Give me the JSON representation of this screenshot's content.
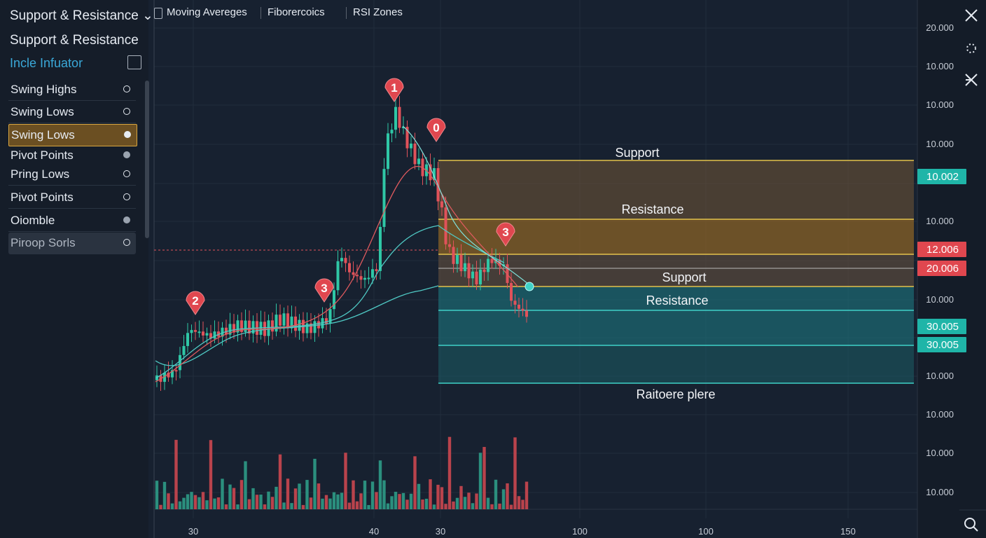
{
  "header": {
    "title": "Support & Resistance",
    "tabs": [
      "Moving Avereges",
      "Fiborercoics",
      "RSI Zones"
    ]
  },
  "panel": {
    "title": "Support & Resistance",
    "subtitle": "Incle Infuator",
    "items": [
      "Swing Highs",
      "Swing Lows",
      "Swing Lows",
      "Pivot Points",
      "Pring Lows",
      "Pivot Points",
      "Oiomble",
      "Piroop Sorls"
    ]
  },
  "y_axis": [
    "20.000",
    "10.000",
    "10.000",
    "10.000",
    "10.000",
    "10.000",
    "10.000",
    "10.000",
    "10.000",
    "10.000"
  ],
  "x_axis": [
    "30",
    "40",
    "30",
    "100",
    "100",
    "150"
  ],
  "price_badges": [
    "10.002",
    "12.006",
    "20.006",
    "30.005",
    "30.005"
  ],
  "zones": [
    "Support",
    "Resistance",
    "Support",
    "Resistance",
    "Raitoere plere"
  ],
  "markers": [
    "2",
    "3",
    "1",
    "0",
    "3"
  ]
}
